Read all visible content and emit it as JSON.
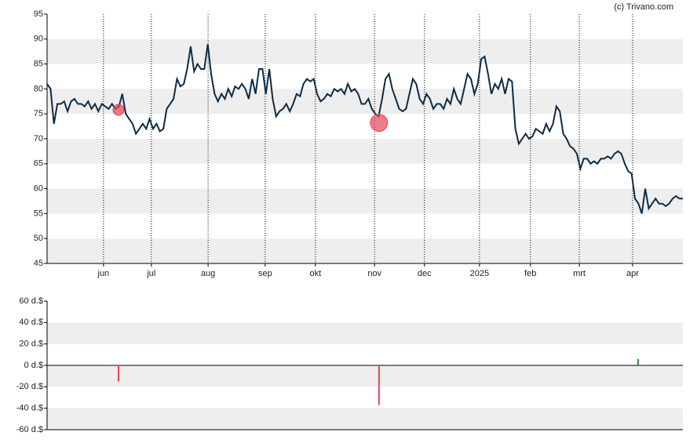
{
  "chart_data": [
    {
      "type": "line",
      "credit": "(c) Trivano.com",
      "color": "#0d2b45",
      "marker_color": "#e8435a",
      "values": [
        81,
        80,
        73,
        77,
        77,
        77.5,
        75.5,
        77.5,
        78,
        77,
        77,
        76.5,
        77.5,
        76,
        77,
        75.5,
        77,
        76.5,
        76,
        77,
        76,
        76.5,
        79,
        75,
        74,
        73,
        71,
        72,
        73,
        72,
        74,
        72,
        73,
        71.5,
        72,
        76,
        77,
        78,
        82,
        80.5,
        81,
        84,
        88.5,
        83.5,
        85,
        84,
        84,
        89,
        83,
        79,
        77.5,
        79,
        78,
        80,
        78.5,
        80.5,
        80,
        81,
        80,
        78,
        82,
        79,
        84,
        84,
        79,
        84,
        78,
        74.5,
        75.5,
        76,
        77,
        75.5,
        77,
        79,
        78.5,
        81,
        82,
        81.5,
        82,
        79,
        77.5,
        78,
        79,
        78.5,
        80,
        79.5,
        80,
        79,
        81,
        79.5,
        80,
        79,
        77,
        77,
        78,
        76,
        75,
        74.5,
        78,
        82,
        83,
        80,
        78,
        76,
        75.5,
        76,
        79,
        82,
        81,
        78,
        77,
        79,
        78,
        76,
        77,
        77,
        76,
        78,
        77,
        80,
        78,
        77,
        80,
        83,
        82,
        79,
        81,
        86,
        86.5,
        83,
        79,
        81,
        80,
        82,
        79,
        82,
        81.5,
        72,
        69,
        70,
        71,
        70,
        70.5,
        72,
        71.5,
        71,
        73,
        71.5,
        73,
        76.5,
        75.5,
        71,
        70,
        68.5,
        68,
        67,
        64,
        66,
        66,
        65,
        65.5,
        65,
        66,
        66,
        66.5,
        66,
        67,
        67.5,
        67,
        65,
        63.5,
        63,
        58,
        57,
        55,
        60,
        56,
        57,
        58,
        57,
        57,
        56.5,
        57,
        58,
        58.5,
        58,
        58
      ],
      "trades": {
        "x": [
          20.9,
          97.1
        ],
        "values": [
          75.8,
          73.2
        ]
      },
      "xlim": [
        0,
        186
      ],
      "xticks": [
        {
          "value": 16.5,
          "label": "jun"
        },
        {
          "value": 30.5,
          "label": "jul"
        },
        {
          "value": 47.1,
          "label": "aug"
        },
        {
          "value": 63.8,
          "label": "sep"
        },
        {
          "value": 78.5,
          "label": "okt"
        },
        {
          "value": 95.8,
          "label": "nov"
        },
        {
          "value": 110.4,
          "label": "dec"
        },
        {
          "value": 126.5,
          "label": "2025"
        },
        {
          "value": 141.4,
          "label": "feb"
        },
        {
          "value": 155.7,
          "label": "mrt"
        },
        {
          "value": 171.3,
          "label": "apr"
        }
      ],
      "ylim": [
        45,
        95
      ],
      "yticks": [
        45,
        50,
        55,
        60,
        65,
        70,
        75,
        80,
        85,
        90,
        95
      ],
      "grid": true
    },
    {
      "type": "bar",
      "x": [
        20.9,
        97.1,
        172.9
      ],
      "values": [
        -15,
        -37,
        6
      ],
      "colors": [
        "#e8435a",
        "#e8435a",
        "#3a8a3a"
      ],
      "xlim": [
        0,
        186
      ],
      "ylim": [
        -60,
        60
      ],
      "yticks": [
        {
          "value": -60,
          "label": "-60 d.$"
        },
        {
          "value": -40,
          "label": "-40 d.$"
        },
        {
          "value": -20,
          "label": "-20 d.$"
        },
        {
          "value": 0,
          "label": "0 d.$"
        },
        {
          "value": 20,
          "label": "20 d.$"
        },
        {
          "value": 40,
          "label": "40 d.$"
        },
        {
          "value": 60,
          "label": "60 d.$"
        }
      ]
    }
  ]
}
